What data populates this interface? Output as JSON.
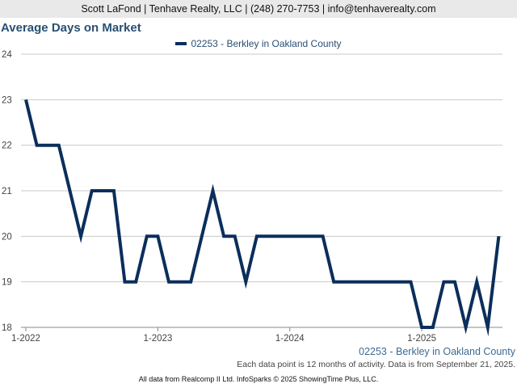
{
  "header": {
    "contact": "Scott LaFond | Tenhave Realty, LLC | (248) 270-7753 | info@tenhaverealty.com"
  },
  "chart_data": {
    "type": "line",
    "title": "Average Days on Market",
    "xlabel": "",
    "ylabel": "",
    "ylim": [
      18,
      24
    ],
    "yticks": [
      "24",
      "23",
      "22",
      "21",
      "20",
      "19",
      "18"
    ],
    "xticks": [
      "1-2022",
      "1-2023",
      "1-2024",
      "1-2025"
    ],
    "grid": true,
    "legend_position": "top-center",
    "series": [
      {
        "name": "02253 - Berkley in Oakland County",
        "color": "#0b2e5b",
        "x": [
          "1-2022",
          "2-2022",
          "3-2022",
          "4-2022",
          "5-2022",
          "6-2022",
          "7-2022",
          "8-2022",
          "9-2022",
          "10-2022",
          "11-2022",
          "12-2022",
          "1-2023",
          "2-2023",
          "3-2023",
          "4-2023",
          "5-2023",
          "6-2023",
          "7-2023",
          "8-2023",
          "9-2023",
          "10-2023",
          "11-2023",
          "12-2023",
          "1-2024",
          "2-2024",
          "3-2024",
          "4-2024",
          "5-2024",
          "6-2024",
          "7-2024",
          "8-2024",
          "9-2024",
          "10-2024",
          "11-2024",
          "12-2024",
          "1-2025",
          "2-2025",
          "3-2025",
          "4-2025",
          "5-2025",
          "6-2025",
          "7-2025",
          "8-2025"
        ],
        "values": [
          23,
          22,
          22,
          22,
          21,
          20,
          21,
          21,
          21,
          19,
          19,
          20,
          20,
          19,
          19,
          19,
          20,
          21,
          20,
          20,
          19,
          20,
          20,
          20,
          20,
          20,
          20,
          20,
          19,
          19,
          19,
          19,
          19,
          19,
          19,
          19,
          18,
          18,
          19,
          19,
          18,
          19,
          18,
          20
        ]
      }
    ]
  },
  "footer": {
    "series_label": "02253 - Berkley in Oakland County",
    "note": "Each data point is 12 months of activity. Data is from September 21, 2025.",
    "credit": "All data from Realcomp II Ltd. InfoSparks © 2025 ShowingTime Plus, LLC."
  }
}
